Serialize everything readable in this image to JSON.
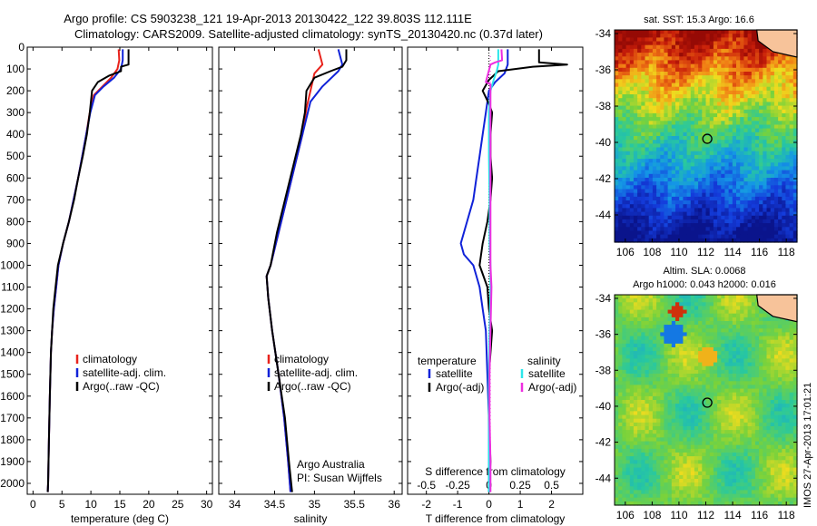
{
  "header": {
    "title_line1": "Argo profile: CS 5903238_121 19-Apr-2013 20130422_122 39.803S 112.111E",
    "title_line2": "Climatology: CARS2009. Satellite-adjusted climatology: synTS_20130420.nc (0.37d later)"
  },
  "colors": {
    "climatology": "#e8231c",
    "satellite": "#1022d8",
    "argo": "#000000",
    "sal_satellite": "#2ce6ea",
    "sal_argo": "#ee2ee0"
  },
  "chart_data": [
    {
      "type": "line",
      "name_key": "temperature",
      "xlabel": "temperature (deg C)",
      "xlim": [
        -1,
        31
      ],
      "xticks": [
        "0",
        "5",
        "10",
        "15",
        "20",
        "25",
        "30"
      ],
      "ylim": [
        2050,
        0
      ],
      "yticks": [
        "0",
        "100",
        "200",
        "300",
        "400",
        "500",
        "600",
        "700",
        "800",
        "900",
        "1000",
        "1100",
        "1200",
        "1300",
        "1400",
        "1500",
        "1600",
        "1700",
        "1800",
        "1900",
        "2000"
      ],
      "legend": [
        "climatology",
        "satellite-adj. clim.",
        "Argo(..raw -QC)"
      ],
      "series": [
        {
          "name": "climatology",
          "color_key": "climatology",
          "points": [
            [
              14.8,
              10
            ],
            [
              14.9,
              60
            ],
            [
              14.6,
              100
            ],
            [
              13.5,
              140
            ],
            [
              12,
              180
            ],
            [
              10.5,
              220
            ],
            [
              9.8,
              300
            ],
            [
              9.2,
              400
            ],
            [
              8.5,
              500
            ],
            [
              7.8,
              600
            ],
            [
              7,
              700
            ],
            [
              6.2,
              800
            ],
            [
              5.2,
              900
            ],
            [
              4.4,
              1000
            ],
            [
              4,
              1100
            ],
            [
              3.6,
              1200
            ],
            [
              3.3,
              1300
            ],
            [
              3.1,
              1400
            ],
            [
              2.9,
              1600
            ],
            [
              2.75,
              1800
            ],
            [
              2.6,
              2000
            ],
            [
              2.55,
              2040
            ]
          ]
        },
        {
          "name": "satellite-adj. clim.",
          "color_key": "satellite",
          "points": [
            [
              15.5,
              10
            ],
            [
              15.5,
              60
            ],
            [
              15.2,
              100
            ],
            [
              14,
              140
            ],
            [
              12.2,
              180
            ],
            [
              10.7,
              220
            ],
            [
              9.9,
              300
            ],
            [
              9.2,
              400
            ],
            [
              8.5,
              500
            ],
            [
              7.8,
              600
            ],
            [
              7,
              700
            ],
            [
              6.2,
              800
            ],
            [
              5.2,
              900
            ],
            [
              4.4,
              1000
            ],
            [
              4,
              1100
            ],
            [
              3.6,
              1200
            ],
            [
              3.3,
              1300
            ],
            [
              3.1,
              1400
            ],
            [
              2.9,
              1600
            ],
            [
              2.75,
              1800
            ],
            [
              2.6,
              2000
            ],
            [
              2.55,
              2040
            ]
          ]
        },
        {
          "name": "Argo(..raw -QC)",
          "color_key": "argo",
          "points": [
            [
              16.5,
              10
            ],
            [
              16.5,
              80
            ],
            [
              15.2,
              90
            ],
            [
              15.2,
              110
            ],
            [
              13.2,
              130
            ],
            [
              11.2,
              160
            ],
            [
              10.2,
              200
            ],
            [
              9.8,
              300
            ],
            [
              9.3,
              400
            ],
            [
              8.6,
              500
            ],
            [
              7.8,
              600
            ],
            [
              7.1,
              700
            ],
            [
              6.2,
              800
            ],
            [
              5.2,
              900
            ],
            [
              4.3,
              1000
            ],
            [
              3.9,
              1100
            ],
            [
              3.5,
              1200
            ],
            [
              3.3,
              1300
            ],
            [
              3.1,
              1400
            ],
            [
              2.9,
              1600
            ],
            [
              2.75,
              1800
            ],
            [
              2.6,
              2000
            ],
            [
              2.55,
              2040
            ]
          ]
        }
      ]
    },
    {
      "type": "line",
      "name_key": "salinity",
      "xlabel": "salinity",
      "xlim": [
        33.8,
        36.1
      ],
      "xticks": [
        "34",
        "34.5",
        "35",
        "35.5",
        "36"
      ],
      "ylim": [
        2050,
        0
      ],
      "legend": [
        "climatology",
        "satellite-adj. clim.",
        "Argo(..raw -QC)"
      ],
      "annotation": [
        "Argo Australia",
        "PI: Susan Wijffels"
      ],
      "series": [
        {
          "name": "climatology",
          "color_key": "climatology",
          "points": [
            [
              35.05,
              10
            ],
            [
              35.1,
              80
            ],
            [
              35.0,
              120
            ],
            [
              34.95,
              200
            ],
            [
              34.9,
              280
            ],
            [
              34.85,
              400
            ],
            [
              34.75,
              550
            ],
            [
              34.65,
              700
            ],
            [
              34.55,
              850
            ],
            [
              34.45,
              1000
            ],
            [
              34.4,
              1050
            ],
            [
              34.42,
              1150
            ],
            [
              34.47,
              1300
            ],
            [
              34.55,
              1500
            ],
            [
              34.62,
              1700
            ],
            [
              34.67,
              1900
            ],
            [
              34.7,
              2040
            ]
          ]
        },
        {
          "name": "satellite-adj. clim.",
          "color_key": "satellite",
          "points": [
            [
              35.3,
              10
            ],
            [
              35.35,
              80
            ],
            [
              35.3,
              110
            ],
            [
              35.1,
              180
            ],
            [
              34.95,
              250
            ],
            [
              34.85,
              400
            ],
            [
              34.75,
              550
            ],
            [
              34.65,
              700
            ],
            [
              34.55,
              850
            ],
            [
              34.45,
              1000
            ],
            [
              34.4,
              1050
            ],
            [
              34.42,
              1150
            ],
            [
              34.47,
              1300
            ],
            [
              34.55,
              1500
            ],
            [
              34.62,
              1700
            ],
            [
              34.67,
              1900
            ],
            [
              34.7,
              2040
            ]
          ]
        },
        {
          "name": "Argo(..raw -QC)",
          "color_key": "argo",
          "points": [
            [
              35.4,
              10
            ],
            [
              35.4,
              60
            ],
            [
              35.35,
              90
            ],
            [
              35.2,
              110
            ],
            [
              35.0,
              140
            ],
            [
              34.95,
              170
            ],
            [
              34.9,
              200
            ],
            [
              34.88,
              300
            ],
            [
              34.83,
              400
            ],
            [
              34.73,
              550
            ],
            [
              34.63,
              700
            ],
            [
              34.53,
              850
            ],
            [
              34.45,
              1000
            ],
            [
              34.4,
              1050
            ],
            [
              34.42,
              1150
            ],
            [
              34.47,
              1300
            ],
            [
              34.55,
              1500
            ],
            [
              34.63,
              1700
            ],
            [
              34.68,
              1900
            ],
            [
              34.72,
              2040
            ]
          ]
        }
      ]
    },
    {
      "type": "line",
      "name_key": "difference",
      "xlabel": "T difference from climatology",
      "xlabel_top": "S difference from climatology",
      "xlim": [
        -2.6,
        3.0
      ],
      "xticks": [
        "-2",
        "-1",
        "0",
        "1",
        "2"
      ],
      "xticks_top": [
        "-0.5",
        "-0.25",
        "0",
        "0.25",
        "0.5"
      ],
      "ylim": [
        2050,
        0
      ],
      "legend_temp_title": "temperature",
      "legend_sal_title": "salinity",
      "legend_temp": [
        "satellite",
        "Argo(-adj)"
      ],
      "legend_sal": [
        "satellite",
        "Argo(-adj)"
      ],
      "series": [
        {
          "name": "T satellite",
          "color_key": "satellite",
          "points": [
            [
              0.6,
              10
            ],
            [
              0.6,
              80
            ],
            [
              0.5,
              120
            ],
            [
              0.2,
              160
            ],
            [
              0,
              200
            ],
            [
              -0.1,
              300
            ],
            [
              -0.2,
              400
            ],
            [
              -0.3,
              500
            ],
            [
              -0.4,
              600
            ],
            [
              -0.5,
              700
            ],
            [
              -0.7,
              800
            ],
            [
              -0.9,
              900
            ],
            [
              -0.8,
              950
            ],
            [
              -0.5,
              1000
            ],
            [
              -0.3,
              1100
            ],
            [
              -0.2,
              1200
            ],
            [
              -0.1,
              1300
            ],
            [
              -0.05,
              1500
            ],
            [
              0,
              1700
            ],
            [
              0,
              1900
            ],
            [
              0,
              2040
            ]
          ]
        },
        {
          "name": "T Argo(-adj)",
          "color_key": "argo",
          "points": [
            [
              1.6,
              10
            ],
            [
              1.6,
              70
            ],
            [
              2.5,
              80
            ],
            [
              1.4,
              90
            ],
            [
              0.3,
              110
            ],
            [
              0,
              150
            ],
            [
              -0.2,
              200
            ],
            [
              0,
              260
            ],
            [
              0.1,
              300
            ],
            [
              0.05,
              400
            ],
            [
              0.05,
              500
            ],
            [
              0.1,
              600
            ],
            [
              0.05,
              700
            ],
            [
              -0.05,
              800
            ],
            [
              -0.2,
              900
            ],
            [
              -0.3,
              1000
            ],
            [
              -0.05,
              1100
            ],
            [
              0,
              1200
            ],
            [
              0.1,
              1300
            ],
            [
              0,
              1500
            ],
            [
              0,
              1700
            ],
            [
              0.05,
              1900
            ],
            [
              0,
              2040
            ]
          ]
        },
        {
          "name": "S satellite",
          "color_key": "sal_satellite",
          "points": [
            [
              0.3,
              10
            ],
            [
              0.3,
              80
            ],
            [
              0.25,
              110
            ],
            [
              0.15,
              150
            ],
            [
              0.05,
              200
            ],
            [
              0,
              300
            ],
            [
              0,
              500
            ],
            [
              0.02,
              700
            ],
            [
              0.02,
              900
            ],
            [
              0.05,
              1000
            ],
            [
              0.05,
              1100
            ],
            [
              0.02,
              1300
            ],
            [
              0,
              1500
            ],
            [
              0,
              1700
            ],
            [
              0,
              2040
            ]
          ]
        },
        {
          "name": "S Argo(-adj)",
          "color_key": "sal_argo",
          "points": [
            [
              0.4,
              10
            ],
            [
              0.42,
              60
            ],
            [
              0.2,
              70
            ],
            [
              0.05,
              80
            ],
            [
              -0.1,
              160
            ],
            [
              0.05,
              170
            ],
            [
              0.05,
              200
            ],
            [
              0.05,
              300
            ],
            [
              0.05,
              500
            ],
            [
              0.05,
              700
            ],
            [
              0.05,
              900
            ],
            [
              0.05,
              1000
            ],
            [
              0.08,
              1100
            ],
            [
              0.05,
              1300
            ],
            [
              0.02,
              1500
            ],
            [
              0.02,
              1700
            ],
            [
              0.05,
              1900
            ],
            [
              0.05,
              2040
            ]
          ]
        }
      ]
    },
    {
      "type": "heatmap",
      "name_key": "sst",
      "title": "sat. SST: 15.3 Argo: 16.6",
      "xlim": [
        105.2,
        118.8
      ],
      "ylim": [
        -45.5,
        -33.8
      ],
      "xticks": [
        "106",
        "108",
        "110",
        "112",
        "114",
        "116",
        "118"
      ],
      "yticks": [
        "-34",
        "-36",
        "-38",
        "-40",
        "-42",
        "-44"
      ],
      "argo_position": [
        112.111,
        -39.803
      ]
    },
    {
      "type": "heatmap",
      "name_key": "sla",
      "title": "Altim. SLA: 0.0068",
      "subtitle": "Argo h1000: 0.043 h2000: 0.016",
      "xlim": [
        105.2,
        118.8
      ],
      "ylim": [
        -45.5,
        -33.8
      ],
      "xticks": [
        "106",
        "108",
        "110",
        "112",
        "114",
        "116",
        "118"
      ],
      "yticks": [
        "-34",
        "-36",
        "-38",
        "-40",
        "-42",
        "-44"
      ],
      "argo_position": [
        112.111,
        -39.803
      ]
    }
  ],
  "watermark": "IMOS 27-Apr-2013 17:01:21"
}
